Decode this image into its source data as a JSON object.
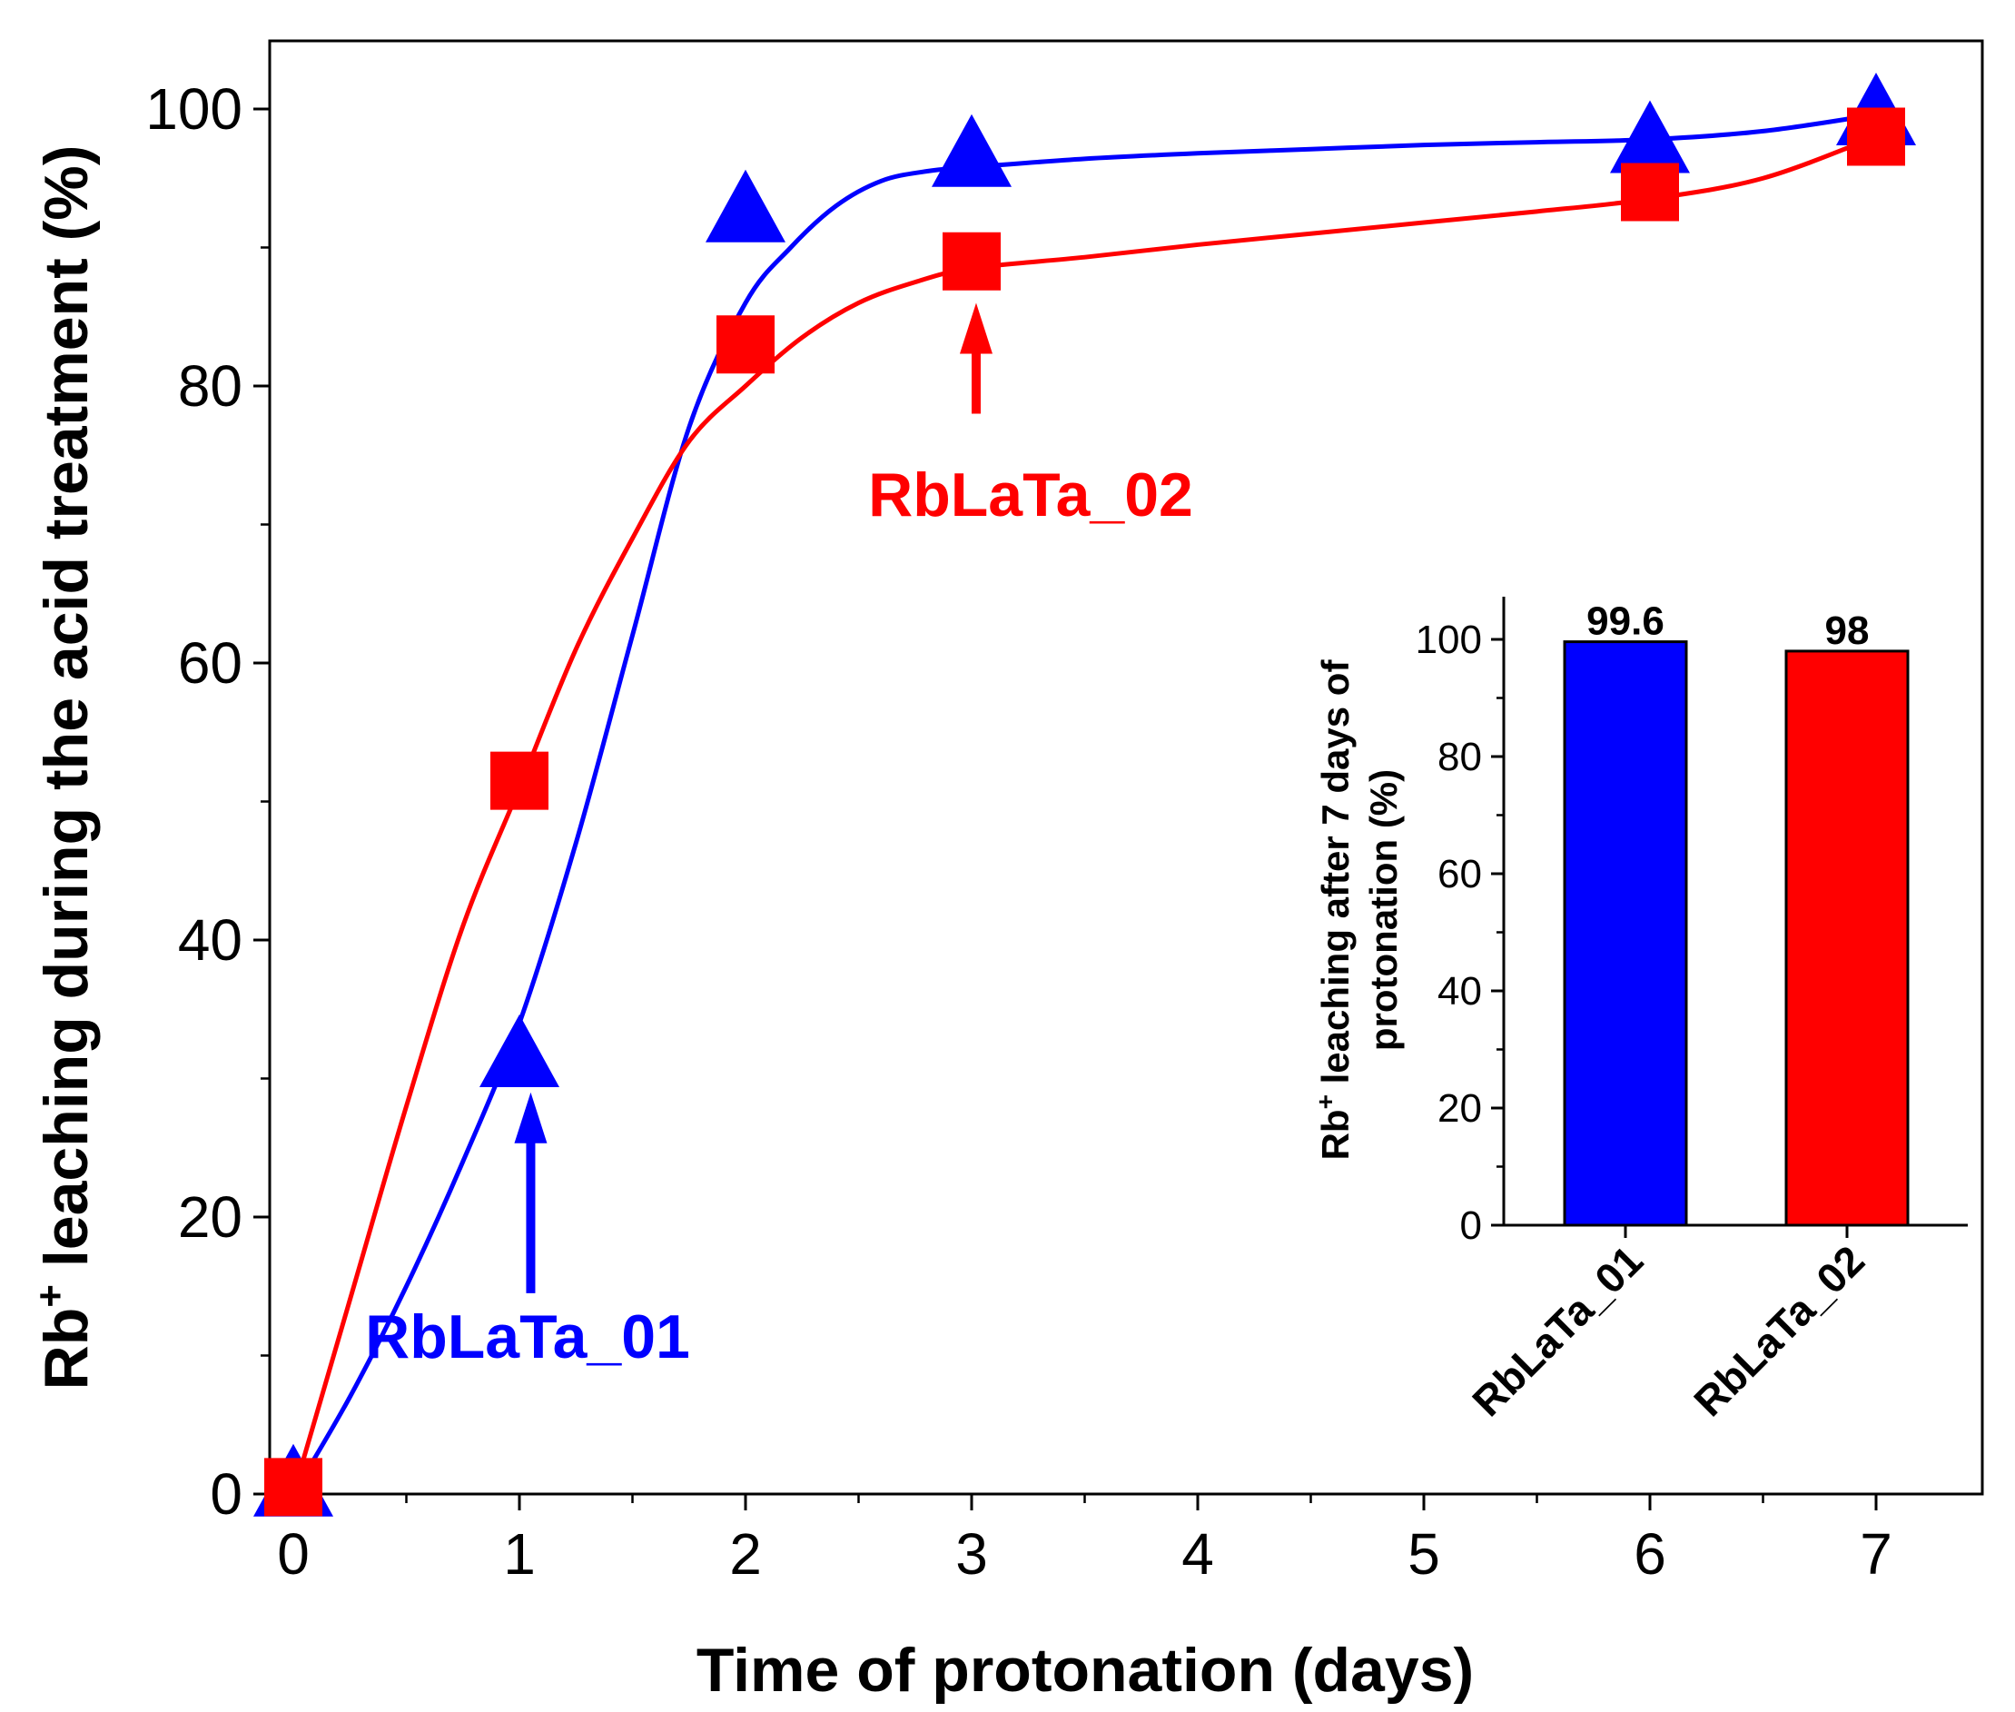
{
  "chart_data": [
    {
      "type": "scatter",
      "title": "",
      "xlabel": "Time of protonation (days)",
      "ylabel_main": "Rb",
      "ylabel_sup": "+",
      "ylabel_rest": " leaching during the acid treatment (%)",
      "xlim": [
        -0.25,
        7.5
      ],
      "ylim": [
        0,
        105
      ],
      "xticks": [
        0,
        1,
        2,
        3,
        4,
        5,
        6,
        7
      ],
      "xtick_labels": [
        "0",
        "1",
        "2",
        "3",
        "4",
        "5",
        "6",
        "7"
      ],
      "yticks": [
        0,
        20,
        40,
        60,
        80,
        100
      ],
      "ytick_labels": [
        "0",
        "20",
        "40",
        "60",
        "80",
        "100"
      ],
      "series": [
        {
          "name": "RbLaTa_01",
          "marker": "triangle",
          "color": "#0000ff",
          "x": [
            0,
            1,
            2,
            3,
            6,
            7
          ],
          "y": [
            1,
            32,
            93,
            97,
            98,
            100
          ],
          "curve_x": [
            0,
            0.25,
            0.5,
            0.75,
            1,
            1.25,
            1.5,
            1.75,
            2,
            2.2,
            2.4,
            2.6,
            2.8,
            3,
            3.5,
            4,
            4.5,
            5,
            5.5,
            6,
            6.5,
            7
          ],
          "curve_y": [
            0,
            7,
            15,
            24,
            34,
            47,
            62,
            77,
            86,
            90,
            93,
            94.8,
            95.5,
            95.8,
            96.4,
            96.8,
            97.1,
            97.4,
            97.6,
            97.8,
            98.4,
            99.6
          ]
        },
        {
          "name": "RbLaTa_02",
          "marker": "square",
          "color": "#ff0000",
          "x": [
            0,
            1,
            2,
            3,
            6,
            7
          ],
          "y": [
            0.5,
            51.5,
            83,
            89,
            94,
            98
          ],
          "curve_x": [
            0,
            0.25,
            0.5,
            0.75,
            1,
            1.25,
            1.5,
            1.75,
            2,
            2.25,
            2.5,
            2.75,
            3,
            3.5,
            4,
            4.5,
            5,
            5.5,
            6,
            6.5,
            7
          ],
          "curve_y": [
            0,
            14,
            28,
            41,
            51,
            61,
            69,
            76,
            80,
            83.5,
            86,
            87.5,
            88.5,
            89.3,
            90.2,
            91,
            91.8,
            92.6,
            93.5,
            95,
            98
          ]
        }
      ],
      "annotations": [
        {
          "text": "RbLaTa_01",
          "color": "#0000ff",
          "arrow_x": 1.05,
          "arrow_y_from": 14.5,
          "arrow_y_to": 29
        },
        {
          "text": "RbLaTa_02",
          "color": "#ff0000",
          "arrow_x": 3.02,
          "arrow_y_from": 78,
          "arrow_y_to": 86
        }
      ]
    },
    {
      "type": "bar",
      "title": "",
      "xlabel": "",
      "ylabel_main": "Rb",
      "ylabel_sup": "+",
      "ylabel_line1": " leaching after 7 days of",
      "ylabel_line2": "protonation (%)",
      "categories": [
        "RbLaTa_01",
        "RbLaTa_02"
      ],
      "values": [
        99.6,
        98
      ],
      "value_labels": [
        "99.6",
        "98"
      ],
      "colors": [
        "#0000ff",
        "#ff0000"
      ],
      "ylim": [
        0,
        107
      ],
      "yticks": [
        0,
        20,
        40,
        60,
        80,
        100
      ],
      "ytick_labels": [
        "0",
        "20",
        "40",
        "60",
        "80",
        "100"
      ]
    }
  ]
}
